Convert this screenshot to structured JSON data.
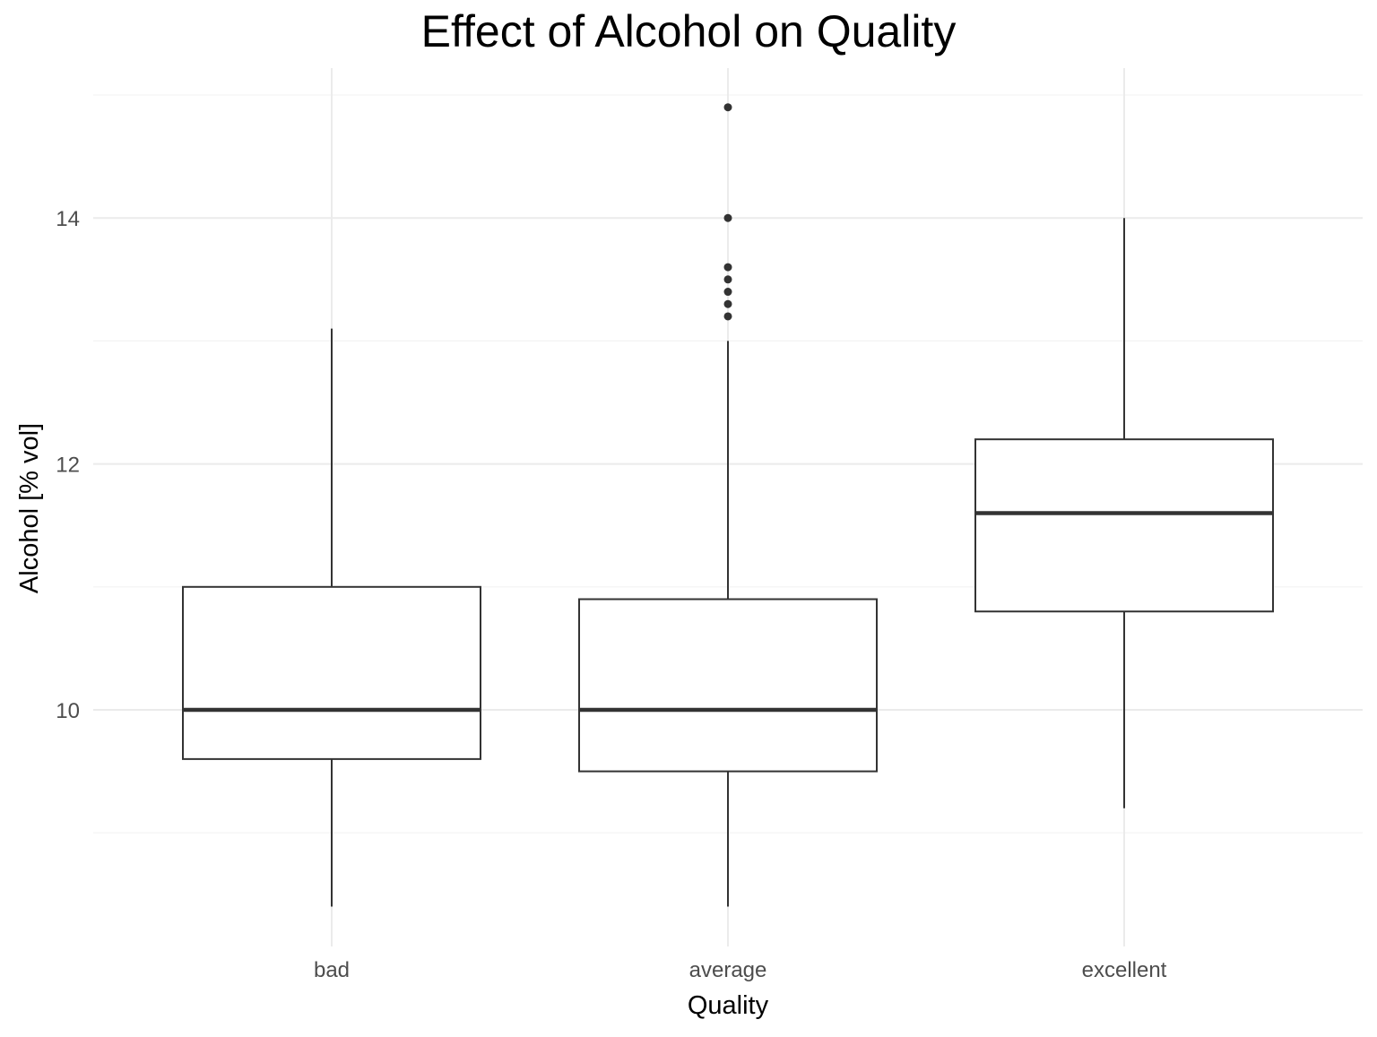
{
  "chart_data": {
    "type": "boxplot",
    "title": "Effect of Alcohol on Quality",
    "xlabel": "Quality",
    "ylabel": "Alcohol [% vol]",
    "categories": [
      "bad",
      "average",
      "excellent"
    ],
    "ylim": [
      8.2,
      15.2
    ],
    "yticks": [
      10,
      12,
      14
    ],
    "ytick_labels": [
      "10",
      "12",
      "14"
    ],
    "y_minor_gridlines": [
      9,
      11,
      13,
      15
    ],
    "grid": true,
    "boxes": [
      {
        "category": "bad",
        "whisker_low": 8.4,
        "q1": 9.6,
        "median": 10.0,
        "q3": 11.0,
        "whisker_high": 13.1,
        "outliers": []
      },
      {
        "category": "average",
        "whisker_low": 8.4,
        "q1": 9.5,
        "median": 10.0,
        "q3": 10.9,
        "whisker_high": 13.0,
        "outliers": [
          13.2,
          13.3,
          13.4,
          13.5,
          13.6,
          14.0,
          14.9
        ]
      },
      {
        "category": "excellent",
        "whisker_low": 9.2,
        "q1": 10.8,
        "median": 11.6,
        "q3": 12.2,
        "whisker_high": 14.0,
        "outliers": []
      }
    ],
    "colors": {
      "box_stroke": "#333333",
      "grid_major": "#ebebeb",
      "grid_minor": "#f3f3f3",
      "tick_text": "#4d4d4d",
      "box_fill": "#ffffff"
    }
  }
}
